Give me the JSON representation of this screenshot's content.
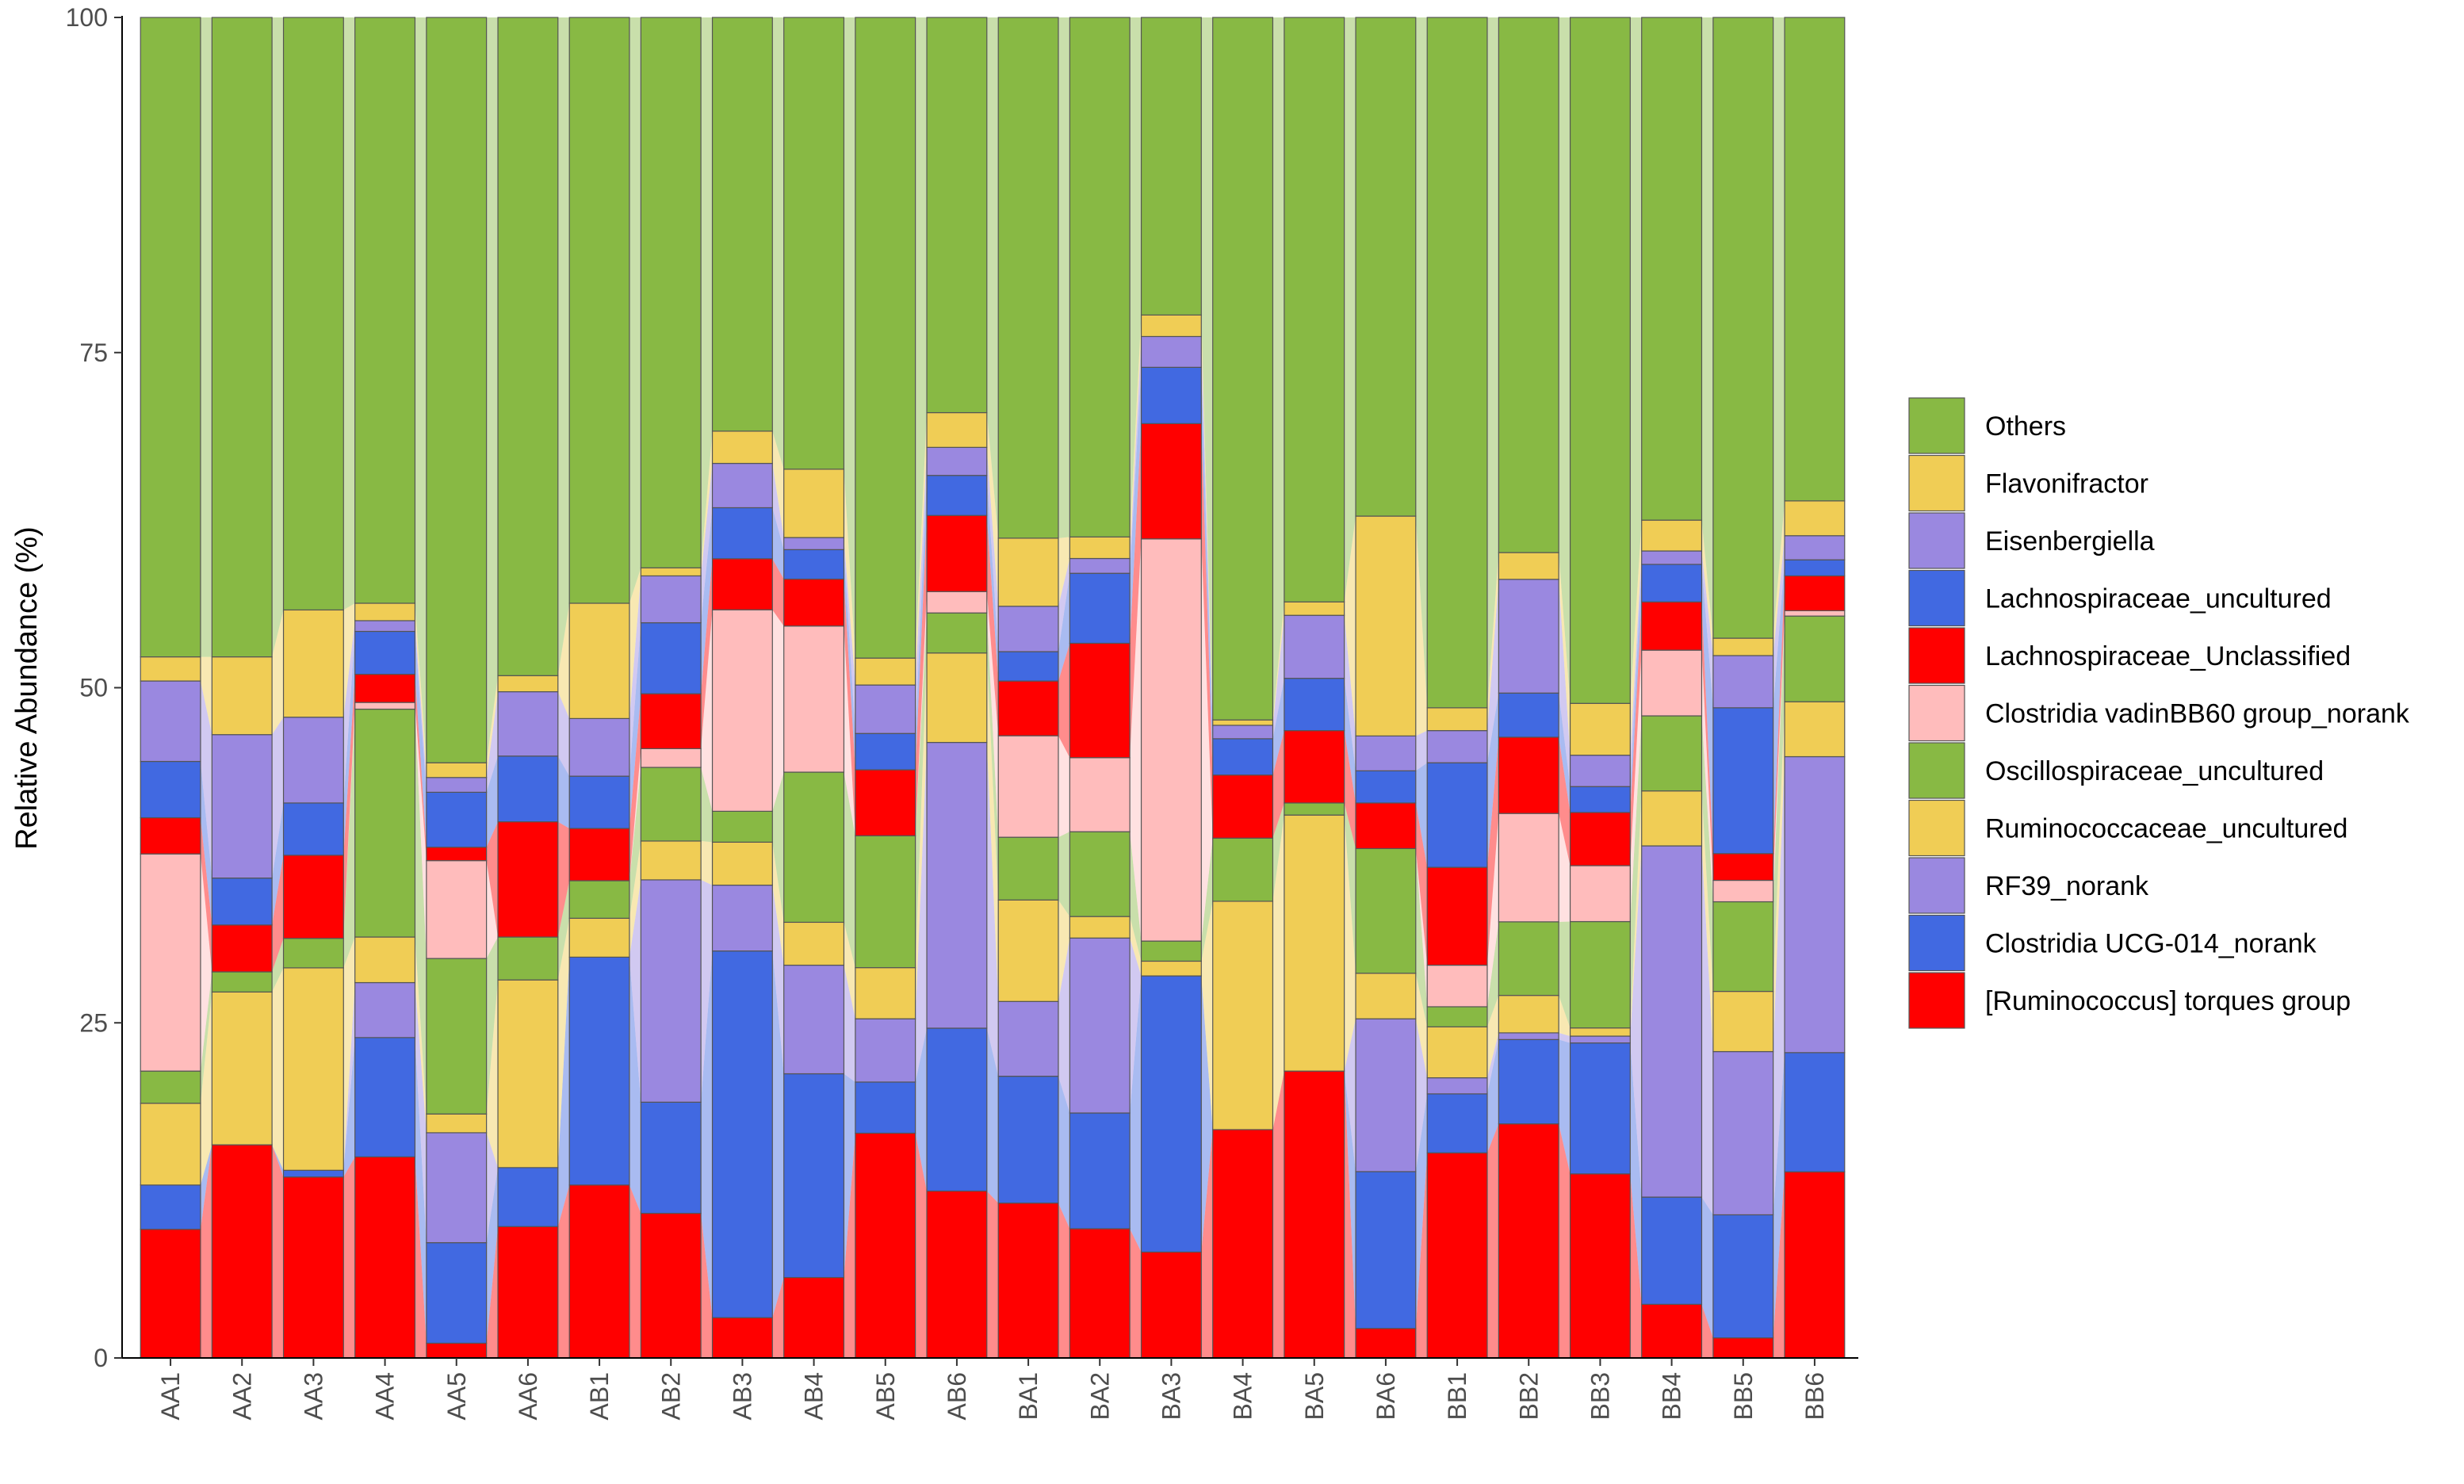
{
  "chart_data": {
    "type": "bar",
    "stacked": true,
    "alluvial_bands": true,
    "title": "",
    "xlabel": "",
    "ylabel": "Relative Abundance (%)",
    "ylim": [
      0,
      100
    ],
    "yticks": [
      "0",
      "25",
      "50",
      "75",
      "100"
    ],
    "categories": [
      "AA1",
      "AA2",
      "AA3",
      "AA4",
      "AA5",
      "AA6",
      "AB1",
      "AB2",
      "AB3",
      "AB4",
      "AB5",
      "AB6",
      "BA1",
      "BA2",
      "BA3",
      "BA4",
      "BA5",
      "BA6",
      "BB1",
      "BB2",
      "BB3",
      "BB4",
      "BB5",
      "BB6"
    ],
    "legend_position": "right",
    "series": [
      {
        "name": "[Ruminococcus] torques group",
        "color": "#FF0000",
        "values": [
          9.6,
          15.9,
          13.5,
          15.0,
          1.1,
          9.8,
          12.9,
          10.8,
          3.0,
          6.0,
          16.7,
          12.5,
          11.6,
          9.6,
          7.9,
          17.0,
          21.4,
          2.2,
          15.3,
          17.5,
          13.5,
          4.0,
          1.5,
          13.9
        ]
      },
      {
        "name": "Clostridia UCG-014_norank",
        "color": "#4169E1",
        "values": [
          3.3,
          0.0,
          0.5,
          8.9,
          7.5,
          4.4,
          17.0,
          8.3,
          27.3,
          15.2,
          3.8,
          12.2,
          9.5,
          8.6,
          20.6,
          0.0,
          0.0,
          11.7,
          4.4,
          6.3,
          9.6,
          8.0,
          9.2,
          8.9
        ]
      },
      {
        "name": "RF39_norank",
        "color": "#9A88E0",
        "values": [
          0.0,
          0.0,
          0.0,
          4.1,
          8.2,
          0.0,
          0.0,
          16.6,
          4.9,
          8.1,
          4.7,
          21.4,
          5.6,
          13.0,
          0.0,
          0.0,
          0.0,
          11.4,
          1.2,
          0.5,
          0.5,
          26.2,
          12.2,
          22.1
        ]
      },
      {
        "name": "Ruminococcaceae_uncultured",
        "color": "#F0CD55",
        "values": [
          6.1,
          11.4,
          15.1,
          3.4,
          1.4,
          14.0,
          2.9,
          2.9,
          3.2,
          3.2,
          3.8,
          6.7,
          7.6,
          1.6,
          1.1,
          17.0,
          19.1,
          3.4,
          3.8,
          2.8,
          0.6,
          4.1,
          4.5,
          4.1
        ]
      },
      {
        "name": "Oscillospiraceae_uncultured",
        "color": "#88B944",
        "values": [
          2.4,
          1.5,
          2.2,
          17.0,
          11.6,
          3.2,
          2.8,
          5.5,
          2.3,
          11.2,
          9.8,
          3.0,
          4.7,
          6.3,
          1.5,
          4.7,
          0.9,
          9.3,
          1.5,
          5.5,
          7.8,
          5.6,
          6.7,
          6.4
        ]
      },
      {
        "name": "Clostridia vadinBB60 group_norank",
        "color": "#FFBCBC",
        "values": [
          16.2,
          0.0,
          0.0,
          0.5,
          7.3,
          0.0,
          0.0,
          1.4,
          15.0,
          10.9,
          0.0,
          1.6,
          7.6,
          5.5,
          30.0,
          0.0,
          0.0,
          0.0,
          3.1,
          8.1,
          4.1,
          4.9,
          1.6,
          0.4
        ]
      },
      {
        "name": "Lachnospiraceae_Unclassified",
        "color": "#FF0000",
        "values": [
          2.7,
          3.5,
          6.2,
          2.1,
          1.0,
          8.6,
          3.9,
          4.1,
          3.8,
          3.5,
          4.9,
          5.7,
          4.1,
          8.5,
          8.6,
          4.7,
          5.4,
          3.4,
          7.3,
          5.7,
          3.9,
          3.6,
          2.0,
          2.6
        ]
      },
      {
        "name": "Lachnospiraceae_uncultured",
        "color": "#4169E1",
        "values": [
          4.2,
          3.5,
          3.9,
          3.2,
          4.1,
          4.9,
          3.9,
          5.3,
          3.8,
          2.2,
          2.7,
          3.0,
          2.2,
          5.2,
          4.2,
          2.7,
          3.9,
          2.4,
          7.8,
          3.3,
          1.9,
          2.8,
          10.9,
          1.2
        ]
      },
      {
        "name": "Eisenbergiella",
        "color": "#9A88E0",
        "values": [
          6.0,
          10.7,
          6.4,
          0.8,
          1.1,
          4.8,
          4.3,
          3.5,
          3.3,
          0.9,
          3.6,
          2.1,
          3.4,
          1.1,
          2.3,
          1.0,
          4.7,
          2.6,
          2.4,
          8.5,
          2.3,
          1.0,
          3.9,
          1.8
        ]
      },
      {
        "name": "Flavonifractor",
        "color": "#F0CD55",
        "values": [
          1.8,
          5.8,
          8.0,
          1.3,
          1.1,
          1.2,
          8.6,
          0.6,
          2.4,
          5.1,
          2.0,
          2.6,
          5.1,
          1.6,
          1.6,
          0.4,
          1.0,
          16.4,
          1.7,
          2.0,
          3.8,
          2.3,
          1.3,
          2.6
        ]
      },
      {
        "name": "Others",
        "color": "#88B944",
        "values": [
          47.7,
          47.7,
          44.2,
          43.7,
          55.6,
          49.1,
          43.7,
          41.1,
          30.8,
          33.7,
          47.6,
          29.6,
          39.0,
          38.6,
          22.2,
          52.3,
          43.6,
          37.2,
          51.5,
          40.0,
          50.3,
          37.5,
          46.4,
          36.1
        ]
      }
    ]
  }
}
